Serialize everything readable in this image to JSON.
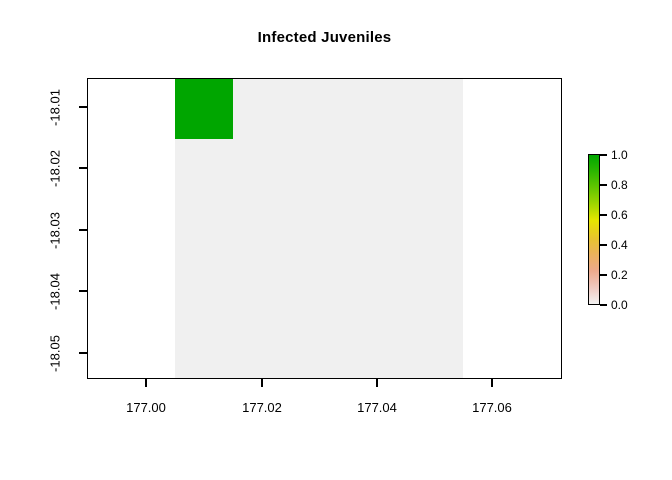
{
  "chart_data": {
    "type": "heatmap",
    "title": "Infected Juveniles",
    "xlabel": "",
    "ylabel": "",
    "x_ticks": [
      "177.00",
      "177.02",
      "177.04",
      "177.06"
    ],
    "y_ticks": [
      "-18.01",
      "-18.02",
      "-18.03",
      "-18.04",
      "-18.05"
    ],
    "x_range_data": [
      177.005,
      177.055
    ],
    "y_range_data": [
      -18.055,
      -18.005
    ],
    "grid": {
      "rows": 5,
      "cols": 5,
      "cell_size_deg": 0.01,
      "rows_order": "top-to-bottom"
    },
    "values": [
      [
        1,
        0,
        0,
        0,
        0
      ],
      [
        0,
        0,
        0,
        0,
        0
      ],
      [
        0,
        0,
        0,
        0,
        0
      ],
      [
        0,
        0,
        0,
        0,
        0
      ],
      [
        0,
        0,
        0,
        0,
        0
      ]
    ],
    "value_colors": {
      "0": "#F0F0F0",
      "1": "#00A600"
    },
    "background_color": "#FFFFFF",
    "box_color": "#000000",
    "grid_lines": false,
    "legend_position": "right",
    "colorbar": {
      "ticks": [
        "1.0",
        "0.8",
        "0.6",
        "0.4",
        "0.2",
        "0.0"
      ],
      "range": [
        0,
        1
      ],
      "palette_name": "terrain-colors-reversed",
      "stops": [
        {
          "at": 0.0,
          "color": "#F2F2F2"
        },
        {
          "at": 0.11,
          "color": "#F0C9C0"
        },
        {
          "at": 0.22,
          "color": "#EDA98D"
        },
        {
          "at": 0.33,
          "color": "#EBB25E"
        },
        {
          "at": 0.44,
          "color": "#E8C32E"
        },
        {
          "at": 0.56,
          "color": "#E6E600"
        },
        {
          "at": 0.67,
          "color": "#A0D600"
        },
        {
          "at": 0.78,
          "color": "#63C600"
        },
        {
          "at": 0.89,
          "color": "#2DB600"
        },
        {
          "at": 1.0,
          "color": "#00A600"
        }
      ]
    }
  }
}
